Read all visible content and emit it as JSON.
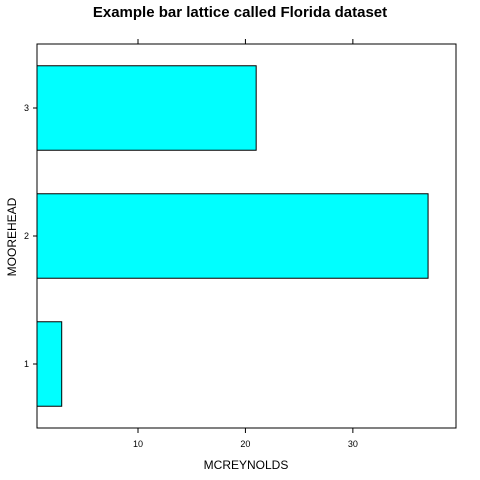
{
  "chart_data": {
    "type": "bar",
    "orientation": "horizontal",
    "title": "Example bar lattice called Florida dataset",
    "xlabel": "MCREYNOLDS",
    "ylabel": "MOOREHEAD",
    "categories": [
      "1",
      "2",
      "3"
    ],
    "values": [
      2.9,
      37.0,
      21.0
    ],
    "xlim": [
      0.6,
      39.6
    ],
    "xticks": [
      10,
      20,
      30
    ],
    "grid": false,
    "bar_color": "#00FFFF",
    "bar_border_color": "#000000"
  }
}
